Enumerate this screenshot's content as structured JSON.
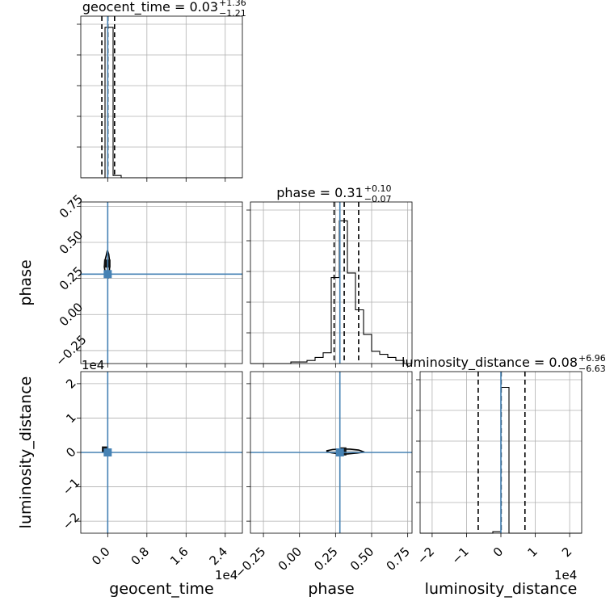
{
  "chart_data": {
    "type": "corner",
    "parameters": [
      {
        "name": "geocent_time",
        "label": "geocent_time",
        "title_name": "geocent_time",
        "title_value": "0.03",
        "title_plus": "+1.36",
        "title_minus": "−1.21",
        "offset_text": "1e4"
      },
      {
        "name": "phase",
        "label": "phase",
        "title_name": "phase",
        "title_value": "0.31",
        "title_plus": "+0.10",
        "title_minus": "−0.07",
        "offset_text": ""
      },
      {
        "name": "luminosity_distance",
        "label": "luminosity_distance",
        "title_name": "luminosity_distance",
        "title_value": "0.08",
        "title_plus": "+6.96",
        "title_minus": "−6.63",
        "offset_text": "1e4"
      }
    ],
    "axes": {
      "geocent_time": {
        "range": [
          -0.55,
          2.75
        ],
        "ticks": [
          0.0,
          0.8,
          1.6,
          2.4
        ],
        "tick_labels": [
          "0.0",
          "0.8",
          "1.6",
          "2.4"
        ],
        "unit_scale": "1e4"
      },
      "phase": {
        "range": [
          -0.34,
          0.78
        ],
        "ticks": [
          -0.25,
          0.0,
          0.25,
          0.5,
          0.75
        ],
        "tick_labels": [
          "−0.25",
          "0.00",
          "0.25",
          "0.50",
          "0.75"
        ]
      },
      "luminosity_distance": {
        "range": [
          -2.35,
          2.35
        ],
        "ticks": [
          -2,
          -1,
          0,
          1,
          2
        ],
        "tick_labels": [
          "−2",
          "−1",
          "0",
          "1",
          "2"
        ],
        "unit_scale": "1e4"
      }
    },
    "truths": {
      "geocent_time": 0.0,
      "phase": 0.28,
      "luminosity_distance": 0.0
    },
    "quantiles": {
      "geocent_time": [
        -0.12,
        0.003,
        0.14
      ],
      "phase": [
        0.24,
        0.31,
        0.41
      ],
      "luminosity_distance": [
        -0.66,
        0.008,
        0.7
      ]
    },
    "marginals": {
      "geocent_time": {
        "edges": [
          -0.55,
          -0.385,
          -0.22,
          -0.055,
          0.11,
          0.275,
          0.44,
          0.605,
          0.77,
          0.935,
          1.1,
          1.265,
          1.43,
          1.595,
          1.76,
          1.925,
          2.09,
          2.255,
          2.42,
          2.585,
          2.75
        ],
        "counts": [
          0,
          0,
          0,
          0.98,
          0.015,
          0,
          0,
          0,
          0,
          0,
          0,
          0,
          0,
          0,
          0,
          0,
          0,
          0,
          0,
          0
        ]
      },
      "phase": {
        "edges": [
          -0.34,
          -0.284,
          -0.228,
          -0.172,
          -0.116,
          -0.06,
          -0.004,
          0.052,
          0.108,
          0.164,
          0.22,
          0.276,
          0.332,
          0.388,
          0.444,
          0.5,
          0.556,
          0.612,
          0.668,
          0.724,
          0.78
        ],
        "counts": [
          0,
          0,
          0,
          0,
          0,
          0.01,
          0.01,
          0.02,
          0.04,
          0.07,
          0.56,
          0.93,
          0.59,
          0.35,
          0.19,
          0.08,
          0.06,
          0.04,
          0.02,
          0
        ]
      },
      "luminosity_distance": {
        "edges": [
          -2.35,
          -2.115,
          -1.88,
          -1.645,
          -1.41,
          -1.175,
          -0.94,
          -0.705,
          -0.47,
          -0.235,
          0,
          0.235,
          0.47,
          0.705,
          0.94,
          1.175,
          1.41,
          1.645,
          1.88,
          2.115,
          2.35
        ],
        "counts": [
          0,
          0,
          0,
          0,
          0,
          0,
          0,
          0,
          0,
          0.01,
          0.95,
          0,
          0,
          0,
          0,
          0,
          0,
          0,
          0,
          0
        ]
      }
    },
    "contours": {
      "phase_vs_geocent_time": [
        [
          0.0,
          0.44
        ],
        [
          0.02,
          0.42
        ],
        [
          0.035,
          0.38
        ],
        [
          0.04,
          0.34
        ],
        [
          0.035,
          0.3
        ],
        [
          0.01,
          0.255
        ],
        [
          -0.02,
          0.26
        ],
        [
          -0.05,
          0.29
        ],
        [
          -0.07,
          0.33
        ],
        [
          -0.06,
          0.37
        ],
        [
          -0.03,
          0.41
        ],
        [
          -0.01,
          0.44
        ]
      ],
      "luminosity_distance_vs_phase": [
        [
          0.19,
          0.05
        ],
        [
          0.23,
          0.085
        ],
        [
          0.29,
          0.1
        ],
        [
          0.35,
          0.095
        ],
        [
          0.41,
          0.07
        ],
        [
          0.45,
          0.01
        ],
        [
          0.4,
          -0.02
        ],
        [
          0.33,
          -0.045
        ],
        [
          0.27,
          -0.04
        ],
        [
          0.22,
          -0.01
        ],
        [
          0.19,
          0.03
        ]
      ]
    },
    "grid": true
  }
}
